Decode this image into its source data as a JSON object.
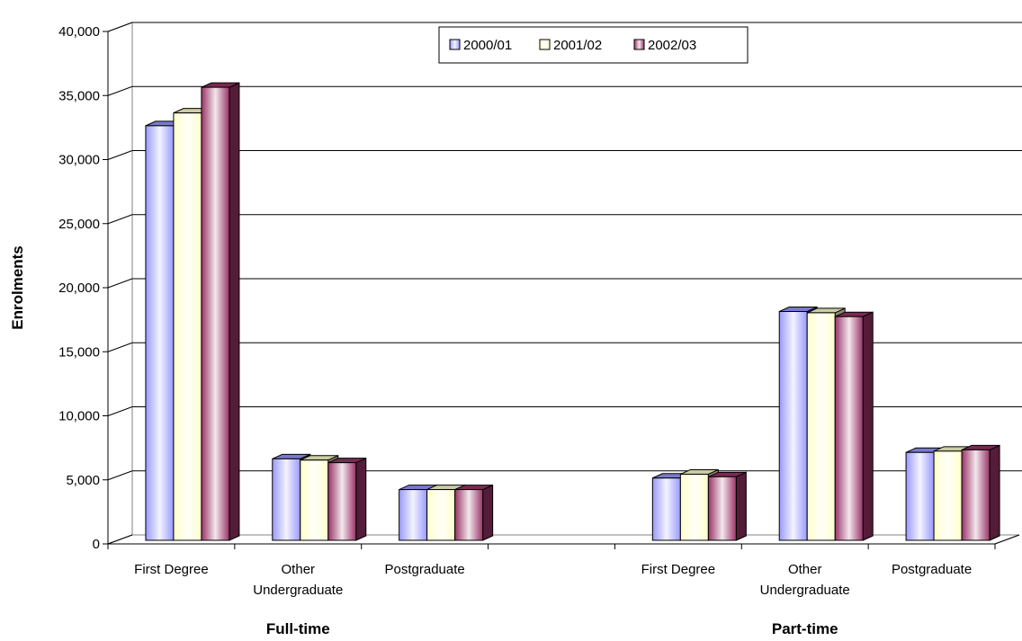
{
  "chart_data": {
    "type": "bar",
    "ylabel": "Enrolments",
    "yticks": [
      "0",
      "5,000",
      "10,000",
      "15,000",
      "20,000",
      "25,000",
      "30,000",
      "35,000",
      "40,000"
    ],
    "ylim": [
      0,
      40000
    ],
    "grid": true,
    "legend_position": "top-center",
    "groups": [
      {
        "label": "Full-time",
        "categories": [
          "First Degree",
          "Other Undergraduate",
          "Postgraduate"
        ]
      },
      {
        "label": "Part-time",
        "categories": [
          "First Degree",
          "Other Undergraduate",
          "Postgraduate"
        ]
      }
    ],
    "categories": [
      "First Degree",
      "Other\nUndergraduate",
      "Postgraduate",
      "",
      "First Degree",
      "Other\nUndergraduate",
      "Postgraduate"
    ],
    "series": [
      {
        "name": "2000/01",
        "color": "#9999ff",
        "values": [
          32500,
          6500,
          4100,
          null,
          5000,
          18000,
          7000
        ]
      },
      {
        "name": "2001/02",
        "color": "#ffffcc",
        "values": [
          33500,
          6400,
          4100,
          null,
          5300,
          17900,
          7100
        ]
      },
      {
        "name": "2002/03",
        "color": "#993366",
        "values": [
          35500,
          6200,
          4100,
          null,
          5100,
          17600,
          7200
        ]
      }
    ]
  }
}
